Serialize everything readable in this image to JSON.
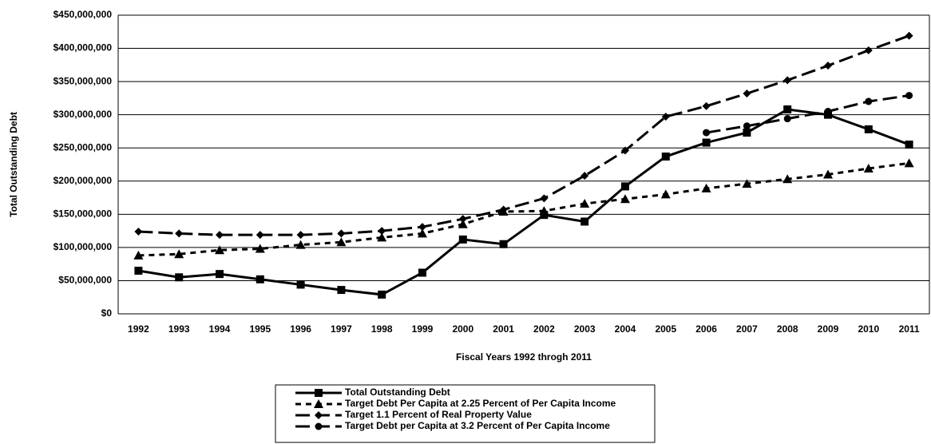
{
  "chart_data": {
    "type": "line",
    "y_label": "Total Outstanding Debt",
    "x_label": "Fiscal Years 1992 throgh 2011",
    "categories": [
      "1992",
      "1993",
      "1994",
      "1995",
      "1996",
      "1997",
      "1998",
      "1999",
      "2000",
      "2001",
      "2002",
      "2003",
      "2004",
      "2005",
      "2006",
      "2007",
      "2008",
      "2009",
      "2010",
      "2011"
    ],
    "series": [
      {
        "name": "Total Outstanding Debt",
        "color": "#000000",
        "dash": "solid",
        "marker": "square",
        "values": [
          65000000,
          55000000,
          60000000,
          52000000,
          44000000,
          36000000,
          29000000,
          62000000,
          112000000,
          105000000,
          149000000,
          139000000,
          192000000,
          237000000,
          258000000,
          273000000,
          308000000,
          300000000,
          278000000,
          255000000
        ]
      },
      {
        "name": "Target Debt Per Capita at 2.25 Percent of Per Capita Income",
        "color": "#000000",
        "dash": "short",
        "marker": "triangle",
        "values": [
          88000000,
          90000000,
          96000000,
          98000000,
          104000000,
          108000000,
          115000000,
          121000000,
          135000000,
          154000000,
          155000000,
          166000000,
          173000000,
          180000000,
          189000000,
          196000000,
          203000000,
          210000000,
          219000000,
          227000000
        ]
      },
      {
        "name": "Target 1.1 Percent of Real Property Value",
        "color": "#000000",
        "dash": "long",
        "marker": "diamond",
        "values": [
          124000000,
          121000000,
          119000000,
          119000000,
          119000000,
          121000000,
          125000000,
          131000000,
          143000000,
          157000000,
          174000000,
          208000000,
          246000000,
          297000000,
          313000000,
          332000000,
          352000000,
          374000000,
          397000000,
          419000000
        ]
      },
      {
        "name": "Target Debt per Capita at 3.2 Percent of Per Capita Income",
        "color": "#000000",
        "dash": "long",
        "marker": "circle",
        "values": [
          null,
          null,
          null,
          null,
          null,
          null,
          null,
          null,
          null,
          null,
          null,
          null,
          null,
          null,
          273000000,
          283000000,
          294000000,
          305000000,
          320000000,
          329000000
        ]
      }
    ],
    "ylim": [
      0,
      450000000
    ],
    "yticks": [
      {
        "value": 0,
        "label": "$0"
      },
      {
        "value": 50000000,
        "label": "$50,000,000"
      },
      {
        "value": 100000000,
        "label": "$100,000,000"
      },
      {
        "value": 150000000,
        "label": "$150,000,000"
      },
      {
        "value": 200000000,
        "label": "$200,000,000"
      },
      {
        "value": 250000000,
        "label": "$250,000,000"
      },
      {
        "value": 300000000,
        "label": "$300,000,000"
      },
      {
        "value": 350000000,
        "label": "$350,000,000"
      },
      {
        "value": 400000000,
        "label": "$400,000,000"
      },
      {
        "value": 450000000,
        "label": "$450,000,000"
      }
    ],
    "grid": true,
    "legend": "bottom"
  }
}
